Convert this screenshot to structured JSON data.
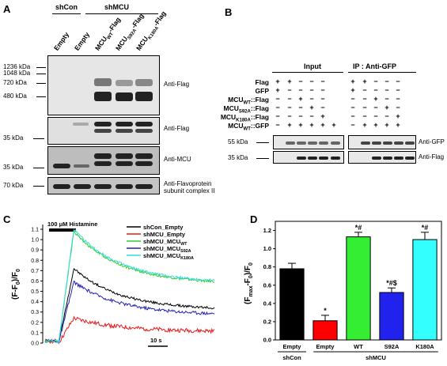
{
  "panels": {
    "a": "A",
    "b": "B",
    "c": "C",
    "d": "D"
  },
  "panel_a": {
    "groups": [
      "shCon",
      "shMCU"
    ],
    "lanes": [
      {
        "main": "Empty",
        "sub": "",
        "tail": ""
      },
      {
        "main": "Empty",
        "sub": "",
        "tail": ""
      },
      {
        "main": "MCU",
        "sub": "WT",
        "tail": "-Flag"
      },
      {
        "main": "MCU",
        "sub": "S92A",
        "tail": "-Flag"
      },
      {
        "main": "MCU",
        "sub": "K180A",
        "tail": "-Flag"
      }
    ],
    "markers_top": [
      "1236 kDa",
      "1048 kDa",
      "720 kDa",
      "480 kDa"
    ],
    "marker_35a": "35 kDa",
    "marker_35b": "35 kDa",
    "marker_70": "70 kDa",
    "blot_labels": [
      "Anti-Flag",
      "Anti-Flag",
      "Anti-MCU",
      "Anti-Flavoprotein",
      "subunit complex II"
    ]
  },
  "panel_b": {
    "input_label": "Input",
    "ip_label": "IP : Anti-GFP",
    "rows": [
      {
        "main": "Flag",
        "sub": "",
        "tail": "",
        "signs": [
          "+",
          "+",
          "−",
          "−",
          "−",
          "−"
        ]
      },
      {
        "main": "GFP",
        "sub": "",
        "tail": "",
        "signs": [
          "+",
          "−",
          "−",
          "−",
          "−",
          "−"
        ]
      },
      {
        "main": "MCU",
        "sub": "WT",
        "tail": "::Flag",
        "signs": [
          "−",
          "−",
          "+",
          "−",
          "−",
          "−"
        ]
      },
      {
        "main": "MCU",
        "sub": "S92A",
        "tail": "::Flag",
        "signs": [
          "−",
          "−",
          "−",
          "+",
          "−",
          "−"
        ]
      },
      {
        "main": "MCU",
        "sub": "K180A",
        "tail": "::Flag",
        "signs": [
          "−",
          "−",
          "−",
          "−",
          "+",
          "−"
        ]
      },
      {
        "main": "MCU",
        "sub": "WT",
        "tail": "::GFP",
        "signs": [
          "−",
          "+",
          "+",
          "+",
          "+",
          "+"
        ]
      }
    ],
    "ip_signs": [
      [
        "+",
        "+",
        "−",
        "−",
        "−"
      ],
      [
        "+",
        "−",
        "−",
        "−",
        "−"
      ],
      [
        "−",
        "−",
        "+",
        "−",
        "−"
      ],
      [
        "−",
        "−",
        "−",
        "+",
        "−"
      ],
      [
        "−",
        "−",
        "−",
        "−",
        "+"
      ],
      [
        "−",
        "+",
        "+",
        "+",
        "+"
      ]
    ],
    "marker_55": "55 kDa",
    "marker_35": "35 kDa",
    "blot_labels": [
      "Anti-GFP",
      "Anti-Flag"
    ]
  },
  "panel_c": {
    "stim_label": "100 μM Histamine",
    "ylabel": "(F-F",
    "ylabel_sub": "0",
    "ylabel_tail": ")/F",
    "ylabel_sub2": "0",
    "scale_label": "10 s",
    "yticks": [
      "0.0",
      "0.1",
      "0.2",
      "0.3",
      "0.4",
      "0.5",
      "0.6",
      "0.7",
      "0.8",
      "0.9",
      "1.0",
      "1.1"
    ],
    "legend": [
      {
        "main": "shCon_Empty",
        "sub": "",
        "color": "#000000"
      },
      {
        "main": "shMCU_Empty",
        "sub": "",
        "color": "#e41a1c"
      },
      {
        "main": "shMCU_MCU",
        "sub": "WT",
        "color": "#33cc33"
      },
      {
        "main": "shMCU_MCU",
        "sub": "S92A",
        "color": "#1f1fb4"
      },
      {
        "main": "shMCU_MCU",
        "sub": "K180A",
        "color": "#33dddd"
      }
    ]
  },
  "chart_data": {
    "type": "bar",
    "categories": [
      "Empty",
      "Empty",
      "WT",
      "S92A",
      "K180A"
    ],
    "group_labels": [
      "shCon",
      "shMCU"
    ],
    "values": [
      0.78,
      0.21,
      1.13,
      0.52,
      1.1
    ],
    "errors": [
      0.06,
      0.06,
      0.05,
      0.05,
      0.08
    ],
    "colors": [
      "#000000",
      "#ff0000",
      "#33ee33",
      "#2222ee",
      "#33ffff"
    ],
    "annotations": [
      "",
      "*",
      "*#",
      "*#$",
      "*#"
    ],
    "ylabel": "(F",
    "ylabel_sub1": "max",
    "ylabel_mid": "-F",
    "ylabel_sub2": "0",
    "ylabel_tail": ")/F",
    "ylabel_sub3": "0",
    "yticks": [
      "0.0",
      "0.2",
      "0.4",
      "0.6",
      "0.8",
      "1.0",
      "1.2"
    ],
    "ylim": [
      0,
      1.3
    ]
  }
}
